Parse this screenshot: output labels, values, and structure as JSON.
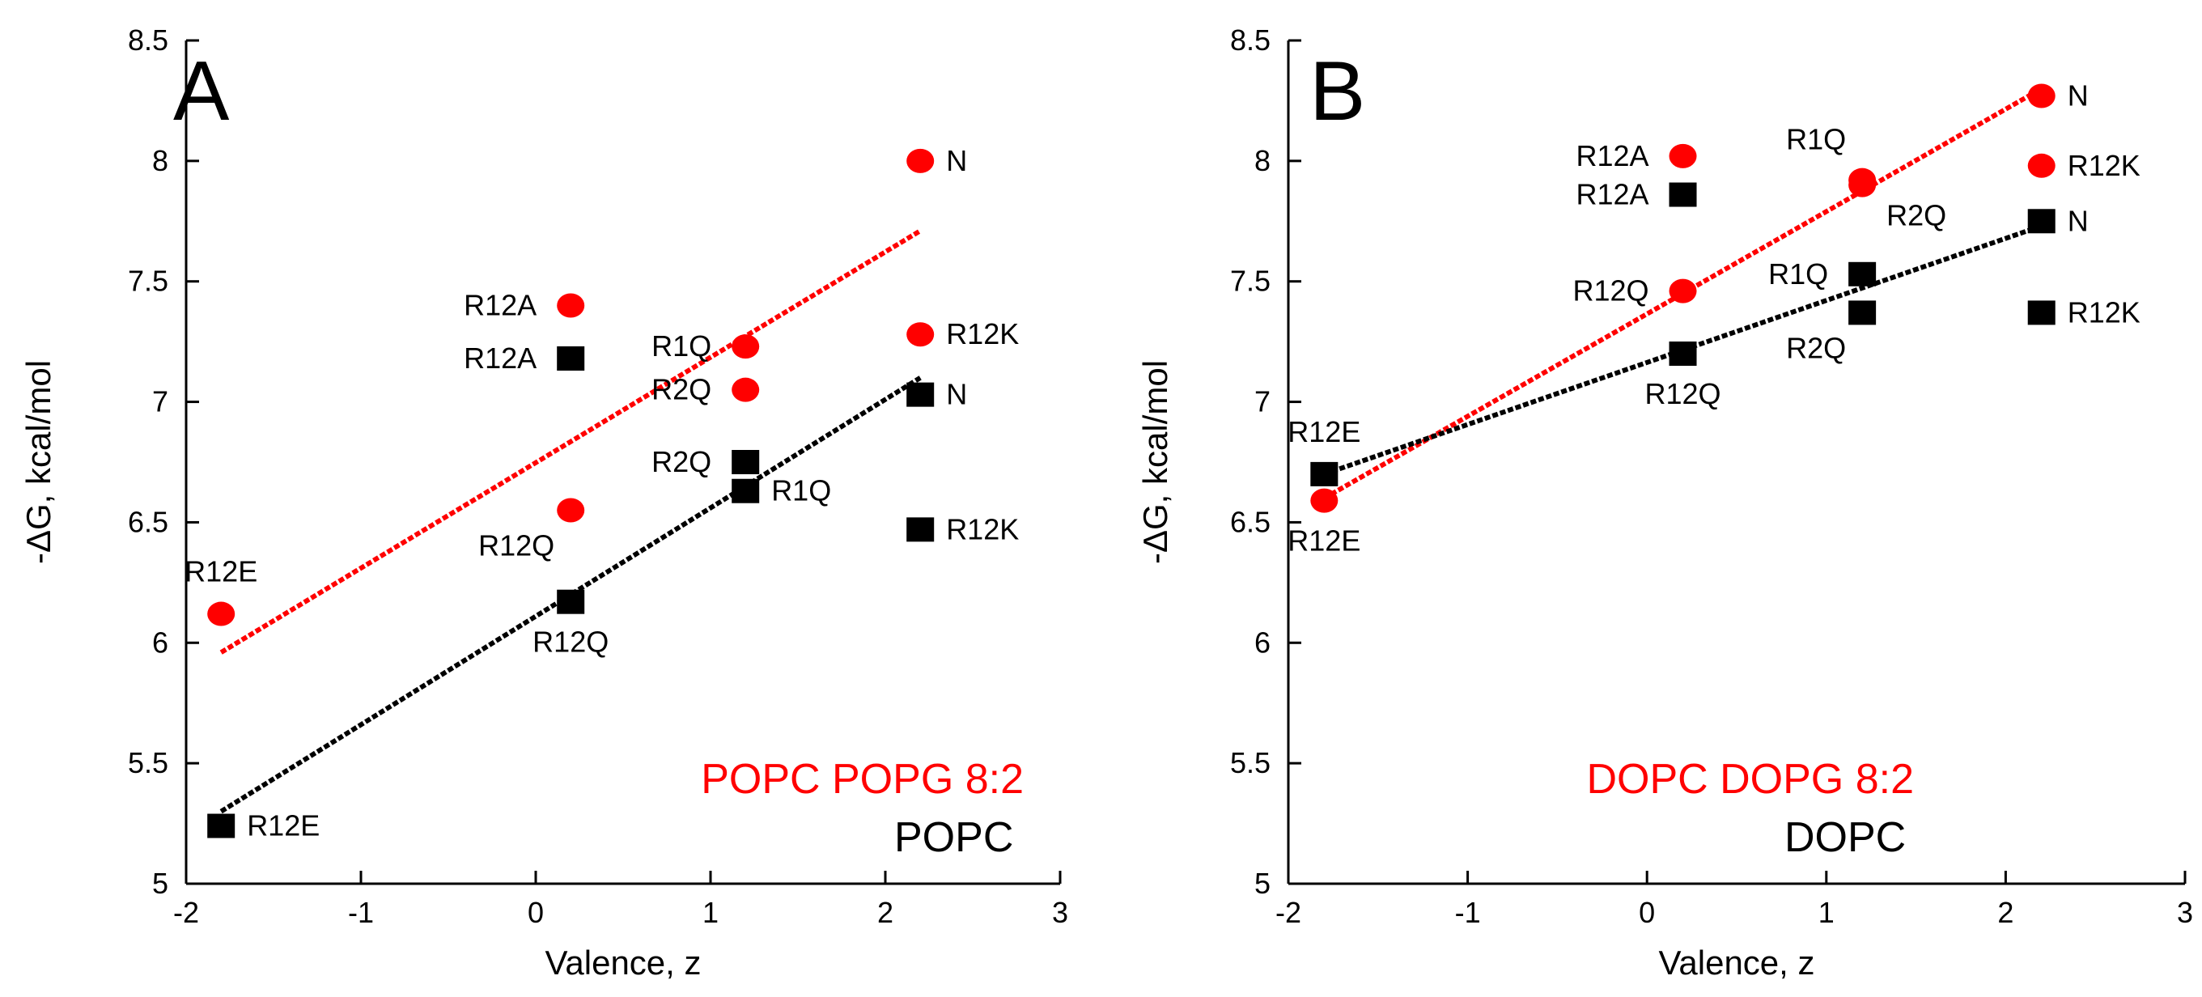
{
  "chart_data": [
    {
      "panel_id": "A",
      "type": "scatter",
      "xlabel": "Valence, z",
      "ylabel": "-ΔG, kcal/mol",
      "xlim": [
        -2,
        3
      ],
      "ylim": [
        5,
        8.5
      ],
      "xticks": [
        -2,
        -1,
        0,
        1,
        2,
        3
      ],
      "yticks": [
        5,
        5.5,
        6,
        6.5,
        7,
        7.5,
        8,
        8.5
      ],
      "xtick_labels": [
        "-2",
        "-1",
        "0",
        "1",
        "2",
        "3"
      ],
      "ytick_labels": [
        "5",
        "5.5",
        "6",
        "6.5",
        "7",
        "7.5",
        "8",
        "8.5"
      ],
      "series": [
        {
          "name": "POPC POPG 8:2",
          "color": "#ff0000",
          "marker": "circle",
          "points": [
            {
              "x": -1.8,
              "y": 6.12,
              "label": "R12E",
              "label_pos": "above"
            },
            {
              "x": 0.2,
              "y": 7.4,
              "label": "R12A",
              "label_pos": "left"
            },
            {
              "x": 0.2,
              "y": 6.55,
              "label": "R12Q",
              "label_pos": "below-left"
            },
            {
              "x": 1.2,
              "y": 7.23,
              "label": "R1Q",
              "label_pos": "left"
            },
            {
              "x": 1.2,
              "y": 7.05,
              "label": "R2Q",
              "label_pos": "left"
            },
            {
              "x": 2.2,
              "y": 8.0,
              "label": "N",
              "label_pos": "right"
            },
            {
              "x": 2.2,
              "y": 7.28,
              "label": "R12K",
              "label_pos": "right"
            }
          ],
          "fit_line": {
            "x": [
              -1.8,
              2.2
            ],
            "y": [
              5.96,
              7.71
            ]
          }
        },
        {
          "name": "POPC",
          "color": "#000000",
          "marker": "square",
          "points": [
            {
              "x": -1.8,
              "y": 5.24,
              "label": "R12E",
              "label_pos": "right"
            },
            {
              "x": 0.2,
              "y": 7.18,
              "label": "R12A",
              "label_pos": "left"
            },
            {
              "x": 0.2,
              "y": 6.17,
              "label": "R12Q",
              "label_pos": "below"
            },
            {
              "x": 1.2,
              "y": 6.75,
              "label": "R2Q",
              "label_pos": "left"
            },
            {
              "x": 1.2,
              "y": 6.63,
              "label": "R1Q",
              "label_pos": "right"
            },
            {
              "x": 2.2,
              "y": 7.03,
              "label": "N",
              "label_pos": "right"
            },
            {
              "x": 2.2,
              "y": 6.47,
              "label": "R12K",
              "label_pos": "right"
            }
          ],
          "fit_line": {
            "x": [
              -1.8,
              2.2
            ],
            "y": [
              5.3,
              7.1
            ]
          }
        }
      ],
      "legend": [
        {
          "text": "POPC POPG 8:2",
          "color": "#ff0000"
        },
        {
          "text": "POPC",
          "color": "#000000"
        }
      ]
    },
    {
      "panel_id": "B",
      "type": "scatter",
      "xlabel": "Valence, z",
      "ylabel": "-ΔG, kcal/mol",
      "xlim": [
        -2,
        3
      ],
      "ylim": [
        5,
        8.5
      ],
      "xticks": [
        -2,
        -1,
        0,
        1,
        2,
        3
      ],
      "yticks": [
        5,
        5.5,
        6,
        6.5,
        7,
        7.5,
        8,
        8.5
      ],
      "xtick_labels": [
        "-2",
        "-1",
        "0",
        "1",
        "2",
        "3"
      ],
      "ytick_labels": [
        "5",
        "5.5",
        "6",
        "6.5",
        "7",
        "7.5",
        "8",
        "8.5"
      ],
      "series": [
        {
          "name": "DOPC DOPG 8:2",
          "color": "#ff0000",
          "marker": "circle",
          "points": [
            {
              "x": -1.8,
              "y": 6.59,
              "label": "R12E",
              "label_pos": "below"
            },
            {
              "x": 0.2,
              "y": 8.02,
              "label": "R12A",
              "label_pos": "left"
            },
            {
              "x": 0.2,
              "y": 7.46,
              "label": "R12Q",
              "label_pos": "left"
            },
            {
              "x": 1.2,
              "y": 7.92,
              "label": "R1Q",
              "label_pos": "above-left"
            },
            {
              "x": 1.2,
              "y": 7.9,
              "label": "R2Q",
              "label_pos": "below-right"
            },
            {
              "x": 2.2,
              "y": 8.27,
              "label": "N",
              "label_pos": "right"
            },
            {
              "x": 2.2,
              "y": 7.98,
              "label": "R12K",
              "label_pos": "right"
            }
          ],
          "fit_line": {
            "x": [
              -1.8,
              2.2
            ],
            "y": [
              6.6,
              8.3
            ]
          }
        },
        {
          "name": "DOPC",
          "color": "#000000",
          "marker": "square",
          "points": [
            {
              "x": -1.8,
              "y": 6.7,
              "label": "R12E",
              "label_pos": "above"
            },
            {
              "x": 0.2,
              "y": 7.86,
              "label": "R12A",
              "label_pos": "left"
            },
            {
              "x": 0.2,
              "y": 7.2,
              "label": "R12Q",
              "label_pos": "below"
            },
            {
              "x": 1.2,
              "y": 7.53,
              "label": "R1Q",
              "label_pos": "left"
            },
            {
              "x": 1.2,
              "y": 7.37,
              "label": "R2Q",
              "label_pos": "below-left"
            },
            {
              "x": 2.2,
              "y": 7.75,
              "label": "N",
              "label_pos": "right"
            },
            {
              "x": 2.2,
              "y": 7.37,
              "label": "R12K",
              "label_pos": "right"
            }
          ],
          "fit_line": {
            "x": [
              -1.8,
              2.2
            ],
            "y": [
              6.7,
              7.73
            ]
          }
        }
      ],
      "legend": [
        {
          "text": "DOPC DOPG 8:2",
          "color": "#ff0000"
        },
        {
          "text": "DOPC",
          "color": "#000000"
        }
      ]
    }
  ]
}
